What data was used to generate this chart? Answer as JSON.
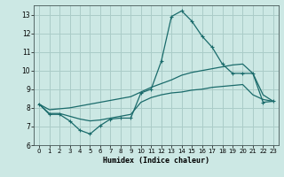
{
  "xlabel": "Humidex (Indice chaleur)",
  "xlim": [
    -0.5,
    23.5
  ],
  "ylim": [
    6,
    13.5
  ],
  "yticks": [
    6,
    7,
    8,
    9,
    10,
    11,
    12,
    13
  ],
  "xticks": [
    0,
    1,
    2,
    3,
    4,
    5,
    6,
    7,
    8,
    9,
    10,
    11,
    12,
    13,
    14,
    15,
    16,
    17,
    18,
    19,
    20,
    21,
    22,
    23
  ],
  "bg_color": "#cce8e4",
  "line_color": "#1a6b6b",
  "grid_color": "#aaccc8",
  "line1_x": [
    0,
    1,
    2,
    3,
    4,
    5,
    6,
    7,
    8,
    9,
    10,
    11,
    12,
    13,
    14,
    15,
    16,
    17,
    18,
    19,
    20,
    21,
    22,
    23
  ],
  "line1_y": [
    8.2,
    7.65,
    7.65,
    7.3,
    6.8,
    6.6,
    7.05,
    7.4,
    7.45,
    7.45,
    8.8,
    9.0,
    10.5,
    12.9,
    13.2,
    12.65,
    11.85,
    11.25,
    10.35,
    9.85,
    9.85,
    9.85,
    8.3,
    8.35
  ],
  "line2_x": [
    0,
    1,
    2,
    3,
    4,
    5,
    6,
    7,
    8,
    9,
    10,
    11,
    12,
    13,
    14,
    15,
    16,
    17,
    18,
    19,
    20,
    21,
    22,
    23
  ],
  "line2_y": [
    8.2,
    7.9,
    7.95,
    8.0,
    8.1,
    8.2,
    8.3,
    8.4,
    8.5,
    8.6,
    8.85,
    9.1,
    9.3,
    9.5,
    9.75,
    9.9,
    10.0,
    10.1,
    10.2,
    10.3,
    10.35,
    9.85,
    8.7,
    8.35
  ],
  "line3_x": [
    0,
    1,
    2,
    3,
    4,
    5,
    6,
    7,
    8,
    9,
    10,
    11,
    12,
    13,
    14,
    15,
    16,
    17,
    18,
    19,
    20,
    21,
    22,
    23
  ],
  "line3_y": [
    8.2,
    7.7,
    7.7,
    7.55,
    7.4,
    7.3,
    7.35,
    7.45,
    7.55,
    7.65,
    8.3,
    8.55,
    8.7,
    8.8,
    8.85,
    8.95,
    9.0,
    9.1,
    9.15,
    9.2,
    9.25,
    8.7,
    8.45,
    8.35
  ]
}
